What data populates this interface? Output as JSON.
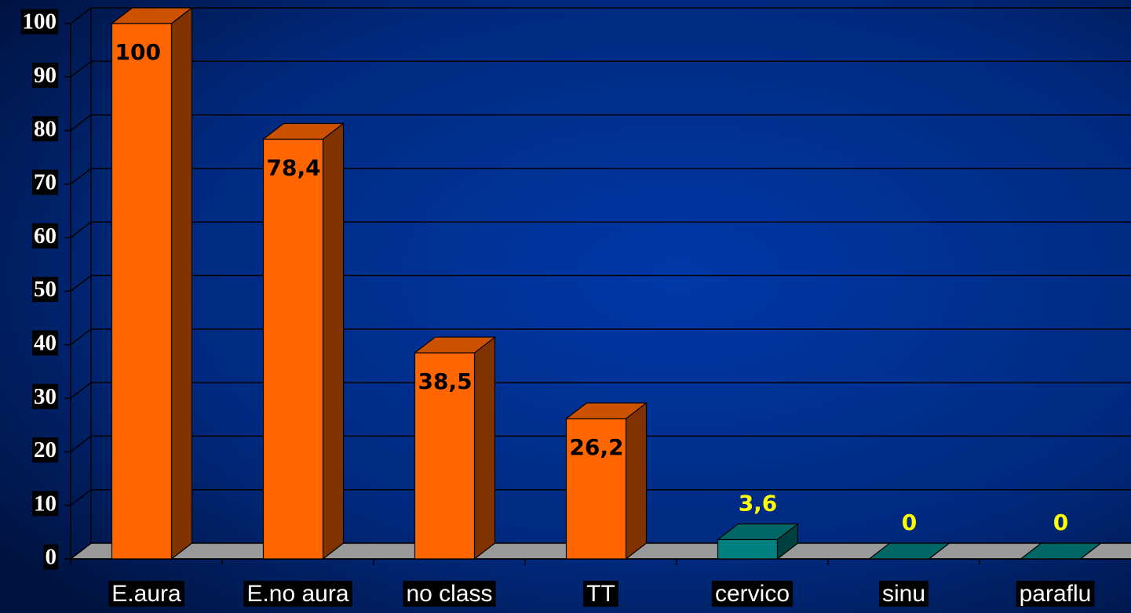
{
  "chart_data": {
    "type": "bar3d",
    "categories": [
      "E.aura",
      "E.no aura",
      "no class",
      "TT",
      "cervico",
      "sinu",
      "paraflu"
    ],
    "values": [
      100,
      78.4,
      38.5,
      26.2,
      3.6,
      0,
      0
    ],
    "value_labels": [
      "100",
      "78,4",
      "38,5",
      "26,2",
      "3,6",
      "0",
      "0"
    ],
    "colors": [
      "#ff6600",
      "#ff6600",
      "#ff6600",
      "#ff6600",
      "#008080",
      "#008080",
      "#008080"
    ],
    "value_label_colors": [
      "#000000",
      "#000000",
      "#000000",
      "#000000",
      "#ffff00",
      "#ffff00",
      "#ffff00"
    ],
    "value_label_positions": [
      "inside",
      "inside",
      "inside",
      "inside",
      "above",
      "above",
      "above"
    ],
    "ylim": [
      0,
      100
    ],
    "yticks": [
      0,
      10,
      20,
      30,
      40,
      50,
      60,
      70,
      80,
      90,
      100
    ],
    "grid": true
  }
}
